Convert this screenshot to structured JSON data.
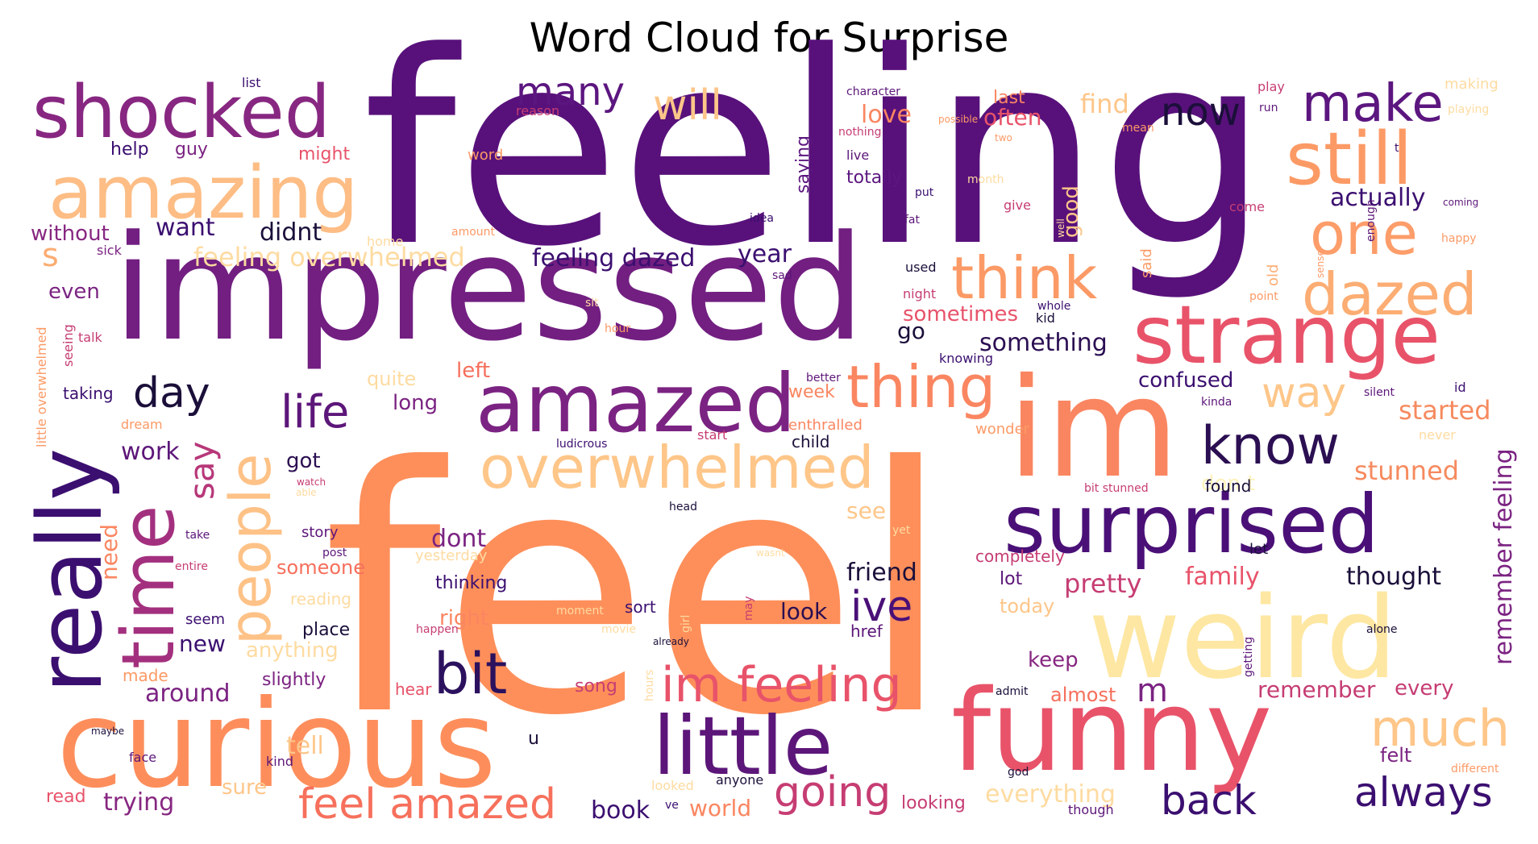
{
  "chart_data": {
    "type": "wordcloud",
    "title": "Word Cloud for Surprise",
    "colormap": "magma",
    "words": [
      {
        "text": "feeling",
        "weight": 1.0,
        "color": "#58117b"
      },
      {
        "text": "feel",
        "weight": 0.97,
        "color": "#fe8f5a"
      },
      {
        "text": "impressed",
        "weight": 0.78,
        "color": "#721f81"
      },
      {
        "text": "curious",
        "weight": 0.6,
        "color": "#fd8e5c"
      },
      {
        "text": "weird",
        "weight": 0.55,
        "color": "#fee7a2"
      },
      {
        "text": "funny",
        "weight": 0.56,
        "color": "#e8536a"
      },
      {
        "text": "im",
        "weight": 0.6,
        "color": "#fa8661"
      },
      {
        "text": "really",
        "weight": 0.42,
        "color": "#3b0f70"
      },
      {
        "text": "little",
        "weight": 0.36,
        "color": "#5c1679"
      },
      {
        "text": "surprised",
        "weight": 0.36,
        "color": "#4a1077"
      },
      {
        "text": "strange",
        "weight": 0.35,
        "color": "#e8536a"
      },
      {
        "text": "amazed",
        "weight": 0.35,
        "color": "#7b2382"
      },
      {
        "text": "shocked",
        "weight": 0.33,
        "color": "#872781"
      },
      {
        "text": "amazing",
        "weight": 0.33,
        "color": "#fdbd85"
      },
      {
        "text": "time",
        "weight": 0.32,
        "color": "#a3307e"
      },
      {
        "text": "people",
        "weight": 0.28,
        "color": "#fec287"
      },
      {
        "text": "overwhelmed",
        "weight": 0.27,
        "color": "#fec689"
      },
      {
        "text": "still",
        "weight": 0.26,
        "color": "#fc9a66"
      },
      {
        "text": "thing",
        "weight": 0.24,
        "color": "#fa8661"
      },
      {
        "text": "think",
        "weight": 0.24,
        "color": "#fb9a66"
      },
      {
        "text": "dazed",
        "weight": 0.23,
        "color": "#fcad73"
      },
      {
        "text": "one",
        "weight": 0.22,
        "color": "#fd9d6a"
      },
      {
        "text": "make",
        "weight": 0.21,
        "color": "#5c167f"
      },
      {
        "text": "bit",
        "weight": 0.21,
        "color": "#2b115e"
      },
      {
        "text": "know",
        "weight": 0.2,
        "color": "#2b0f52"
      },
      {
        "text": "much",
        "weight": 0.19,
        "color": "#fec689"
      },
      {
        "text": "im feeling",
        "weight": 0.19,
        "color": "#e8536a"
      },
      {
        "text": "feel amazed",
        "weight": 0.17,
        "color": "#f6705c"
      },
      {
        "text": "life",
        "weight": 0.16,
        "color": "#5c1679"
      },
      {
        "text": "always",
        "weight": 0.16,
        "color": "#3b0f70"
      },
      {
        "text": "back",
        "weight": 0.16,
        "color": "#3b0f70"
      },
      {
        "text": "way",
        "weight": 0.16,
        "color": "#fec689"
      },
      {
        "text": "going",
        "weight": 0.16,
        "color": "#c63d73"
      },
      {
        "text": "day",
        "weight": 0.16,
        "color": "#1b0f3a"
      },
      {
        "text": "ive",
        "weight": 0.15,
        "color": "#4a1077"
      },
      {
        "text": "will",
        "weight": 0.15,
        "color": "#fec689"
      },
      {
        "text": "now",
        "weight": 0.14,
        "color": "#1b0f3a"
      },
      {
        "text": "many",
        "weight": 0.14,
        "color": "#5c167f"
      },
      {
        "text": "say",
        "weight": 0.13,
        "color": "#b73779"
      },
      {
        "text": "m",
        "weight": 0.13,
        "color": "#7b2382"
      },
      {
        "text": "s",
        "weight": 0.12,
        "color": "#fcad73"
      },
      {
        "text": "stunned",
        "weight": 0.1,
        "color": "#f68a5e"
      },
      {
        "text": "started",
        "weight": 0.1,
        "color": "#f68a5e"
      },
      {
        "text": "pretty",
        "weight": 0.1,
        "color": "#c63d73"
      },
      {
        "text": "feeling overwhelmed",
        "weight": 0.1,
        "color": "#fedba1"
      },
      {
        "text": "feeling dazed",
        "weight": 0.09,
        "color": "#3b0f70"
      },
      {
        "text": "actually",
        "weight": 0.09,
        "color": "#3b0f70"
      },
      {
        "text": "something",
        "weight": 0.09,
        "color": "#2b0f52"
      },
      {
        "text": "thought",
        "weight": 0.09,
        "color": "#1b0f3a"
      },
      {
        "text": "didnt",
        "weight": 0.09,
        "color": "#1b0f3a"
      },
      {
        "text": "friend",
        "weight": 0.09,
        "color": "#1b0f3a"
      },
      {
        "text": "family",
        "weight": 0.09,
        "color": "#e8536a"
      },
      {
        "text": "dont",
        "weight": 0.09,
        "color": "#7b2382"
      },
      {
        "text": "year",
        "weight": 0.09,
        "color": "#3b0f70"
      },
      {
        "text": "want",
        "weight": 0.09,
        "color": "#3b0f70"
      },
      {
        "text": "remember feeling",
        "weight": 0.09,
        "color": "#7b2382"
      },
      {
        "text": "remember",
        "weight": 0.09,
        "color": "#c63d73"
      },
      {
        "text": "around",
        "weight": 0.09,
        "color": "#7b2382"
      },
      {
        "text": "trying",
        "weight": 0.08,
        "color": "#872781"
      },
      {
        "text": "find",
        "weight": 0.08,
        "color": "#fec689"
      },
      {
        "text": "love",
        "weight": 0.08,
        "color": "#fa8661"
      },
      {
        "text": "often",
        "weight": 0.08,
        "color": "#e8536a"
      },
      {
        "text": "look",
        "weight": 0.08,
        "color": "#2b0f52"
      },
      {
        "text": "book",
        "weight": 0.08,
        "color": "#3b0f70"
      },
      {
        "text": "world",
        "weight": 0.08,
        "color": "#fa8661"
      },
      {
        "text": "see",
        "weight": 0.08,
        "color": "#fec689"
      },
      {
        "text": "sure",
        "weight": 0.08,
        "color": "#fec689"
      },
      {
        "text": "confused",
        "weight": 0.08,
        "color": "#3b0f70"
      },
      {
        "text": "new",
        "weight": 0.08,
        "color": "#3b0f70"
      },
      {
        "text": "work",
        "weight": 0.08,
        "color": "#5c1679"
      },
      {
        "text": "tell",
        "weight": 0.08,
        "color": "#fec689"
      },
      {
        "text": "every",
        "weight": 0.08,
        "color": "#c63d73"
      },
      {
        "text": "everything",
        "weight": 0.08,
        "color": "#fedba1"
      },
      {
        "text": "need",
        "weight": 0.08,
        "color": "#fa8661"
      },
      {
        "text": "got",
        "weight": 0.07,
        "color": "#2b0f52"
      },
      {
        "text": "go",
        "weight": 0.07,
        "color": "#1b0f3a"
      },
      {
        "text": "even",
        "weight": 0.07,
        "color": "#7b2382"
      },
      {
        "text": "almost",
        "weight": 0.07,
        "color": "#f66f5c"
      },
      {
        "text": "felt",
        "weight": 0.07,
        "color": "#7b2382"
      },
      {
        "text": "keep",
        "weight": 0.07,
        "color": "#872781"
      },
      {
        "text": "left",
        "weight": 0.07,
        "color": "#f66f5c"
      },
      {
        "text": "right",
        "weight": 0.07,
        "color": "#fa8661"
      },
      {
        "text": "sometimes",
        "weight": 0.07,
        "color": "#e8536a"
      },
      {
        "text": "without",
        "weight": 0.07,
        "color": "#872781"
      },
      {
        "text": "today",
        "weight": 0.07,
        "color": "#fec689"
      },
      {
        "text": "good",
        "weight": 0.07,
        "color": "#fec689"
      },
      {
        "text": "saying",
        "weight": 0.07,
        "color": "#5c167f"
      },
      {
        "text": "don t",
        "weight": 0.07,
        "color": "#fef2bb"
      },
      {
        "text": "someone",
        "weight": 0.07,
        "color": "#f66f5c"
      },
      {
        "text": "anything",
        "weight": 0.07,
        "color": "#fedba1"
      },
      {
        "text": "quite",
        "weight": 0.07,
        "color": "#fedba1"
      },
      {
        "text": "week",
        "weight": 0.06,
        "color": "#fa8661"
      },
      {
        "text": "long",
        "weight": 0.06,
        "color": "#7b2382"
      },
      {
        "text": "totally",
        "weight": 0.06,
        "color": "#5c167f"
      },
      {
        "text": "last",
        "weight": 0.06,
        "color": "#fa8661"
      },
      {
        "text": "thinking",
        "weight": 0.06,
        "color": "#3b0f70"
      },
      {
        "text": "taking",
        "weight": 0.06,
        "color": "#3b0f70"
      },
      {
        "text": "place",
        "weight": 0.06,
        "color": "#1b0f3a"
      },
      {
        "text": "hear",
        "weight": 0.06,
        "color": "#e8536a"
      },
      {
        "text": "song",
        "weight": 0.06,
        "color": "#c63d73"
      },
      {
        "text": "slightly",
        "weight": 0.06,
        "color": "#7b2382"
      },
      {
        "text": "completely",
        "weight": 0.06,
        "color": "#c63d73"
      },
      {
        "text": "lot",
        "weight": 0.06,
        "color": "#5c1679"
      },
      {
        "text": "help",
        "weight": 0.06,
        "color": "#3b0f70"
      },
      {
        "text": "guy",
        "weight": 0.06,
        "color": "#7b2382"
      },
      {
        "text": "might",
        "weight": 0.06,
        "color": "#e8536a"
      },
      {
        "text": "read",
        "weight": 0.06,
        "color": "#e8536a"
      },
      {
        "text": "u",
        "weight": 0.06,
        "color": "#1b0f3a"
      },
      {
        "text": "made",
        "weight": 0.06,
        "color": "#fc9a66"
      },
      {
        "text": "looking",
        "weight": 0.06,
        "color": "#c63d73"
      },
      {
        "text": "story",
        "weight": 0.05,
        "color": "#5c1679"
      },
      {
        "text": "sort",
        "weight": 0.05,
        "color": "#3b0f70"
      },
      {
        "text": "reading",
        "weight": 0.05,
        "color": "#fedba1"
      },
      {
        "text": "seem",
        "weight": 0.05,
        "color": "#3b0f70"
      },
      {
        "text": "child",
        "weight": 0.05,
        "color": "#1b0f3a"
      },
      {
        "text": "enthralled",
        "weight": 0.05,
        "color": "#fa8661"
      },
      {
        "text": "wonder",
        "weight": 0.05,
        "color": "#fc9a66"
      },
      {
        "text": "found",
        "weight": 0.05,
        "color": "#1b0f3a"
      },
      {
        "text": "let",
        "weight": 0.05,
        "color": "#1b0f3a"
      },
      {
        "text": "yesterday",
        "weight": 0.05,
        "color": "#fedba1"
      },
      {
        "text": "old",
        "weight": 0.05,
        "color": "#fcad73"
      },
      {
        "text": "said",
        "weight": 0.05,
        "color": "#fc9a66"
      },
      {
        "text": "href",
        "weight": 0.05,
        "color": "#5c1679"
      },
      {
        "text": "home",
        "weight": 0.04,
        "color": "#fedba1"
      },
      {
        "text": "sick",
        "weight": 0.04,
        "color": "#7b2382"
      },
      {
        "text": "talk",
        "weight": 0.04,
        "color": "#c63d73"
      },
      {
        "text": "seeing",
        "weight": 0.04,
        "color": "#c63d73"
      },
      {
        "text": "dream",
        "weight": 0.04,
        "color": "#fc9a66"
      },
      {
        "text": "little overwhelmed",
        "weight": 0.04,
        "color": "#fc9a66"
      },
      {
        "text": "list",
        "weight": 0.04,
        "color": "#3b0f70"
      },
      {
        "text": "reason",
        "weight": 0.04,
        "color": "#c63d73"
      },
      {
        "text": "word",
        "weight": 0.04,
        "color": "#fc9a66"
      },
      {
        "text": "character",
        "weight": 0.04,
        "color": "#5c1679"
      },
      {
        "text": "nothing",
        "weight": 0.04,
        "color": "#c63d73"
      },
      {
        "text": "possible",
        "weight": 0.04,
        "color": "#fc9a66"
      },
      {
        "text": "two",
        "weight": 0.04,
        "color": "#fc9a66"
      },
      {
        "text": "live",
        "weight": 0.04,
        "color": "#5c1679"
      },
      {
        "text": "put",
        "weight": 0.04,
        "color": "#3b0f70"
      },
      {
        "text": "fat",
        "weight": 0.04,
        "color": "#5c1679"
      },
      {
        "text": "month",
        "weight": 0.04,
        "color": "#fedba1"
      },
      {
        "text": "give",
        "weight": 0.04,
        "color": "#c63d73"
      },
      {
        "text": "idea",
        "weight": 0.04,
        "color": "#3b0f70"
      },
      {
        "text": "amount",
        "weight": 0.04,
        "color": "#fc9a66"
      },
      {
        "text": "used",
        "weight": 0.04,
        "color": "#1b0f3a"
      },
      {
        "text": "night",
        "weight": 0.04,
        "color": "#c63d73"
      },
      {
        "text": "sad",
        "weight": 0.04,
        "color": "#5c1679"
      },
      {
        "text": "sit",
        "weight": 0.04,
        "color": "#fedba1"
      },
      {
        "text": "hour",
        "weight": 0.04,
        "color": "#fc9a66"
      },
      {
        "text": "kid",
        "weight": 0.04,
        "color": "#1b0f3a"
      },
      {
        "text": "whole",
        "weight": 0.04,
        "color": "#3b0f70"
      },
      {
        "text": "knowing",
        "weight": 0.04,
        "color": "#3b0f70"
      },
      {
        "text": "better",
        "weight": 0.04,
        "color": "#5c1679"
      },
      {
        "text": "kinda",
        "weight": 0.04,
        "color": "#5c1679"
      },
      {
        "text": "silent",
        "weight": 0.04,
        "color": "#5c1679"
      },
      {
        "text": "id",
        "weight": 0.04,
        "color": "#3b0f70"
      },
      {
        "text": "never",
        "weight": 0.04,
        "color": "#fedba1"
      },
      {
        "text": "point",
        "weight": 0.04,
        "color": "#fc9a66"
      },
      {
        "text": "sense",
        "weight": 0.04,
        "color": "#fc9a66"
      },
      {
        "text": "well",
        "weight": 0.04,
        "color": "#fedba1"
      },
      {
        "text": "come",
        "weight": 0.04,
        "color": "#c63d73"
      },
      {
        "text": "enough",
        "weight": 0.04,
        "color": "#5c1679"
      },
      {
        "text": "happy",
        "weight": 0.04,
        "color": "#fc9a66"
      },
      {
        "text": "coming",
        "weight": 0.04,
        "color": "#5c1679"
      },
      {
        "text": "making",
        "weight": 0.04,
        "color": "#fedba1"
      },
      {
        "text": "playing",
        "weight": 0.04,
        "color": "#fedba1"
      },
      {
        "text": "play",
        "weight": 0.04,
        "color": "#c63d73"
      },
      {
        "text": "run",
        "weight": 0.04,
        "color": "#5c1679"
      },
      {
        "text": "mean",
        "weight": 0.04,
        "color": "#fc9a66"
      },
      {
        "text": "t",
        "weight": 0.04,
        "color": "#3b0f70"
      },
      {
        "text": "ludicrous",
        "weight": 0.04,
        "color": "#3b0f70"
      },
      {
        "text": "start",
        "weight": 0.04,
        "color": "#c63d73"
      },
      {
        "text": "watch",
        "weight": 0.03,
        "color": "#c63d73"
      },
      {
        "text": "able",
        "weight": 0.03,
        "color": "#fedba1"
      },
      {
        "text": "head",
        "weight": 0.03,
        "color": "#1b0f3a"
      },
      {
        "text": "bit stunned",
        "weight": 0.03,
        "color": "#c63d73"
      },
      {
        "text": "yet",
        "weight": 0.03,
        "color": "#fedba1"
      },
      {
        "text": "take",
        "weight": 0.03,
        "color": "#5c1679"
      },
      {
        "text": "entire",
        "weight": 0.03,
        "color": "#c63d73"
      },
      {
        "text": "post",
        "weight": 0.03,
        "color": "#5c1679"
      },
      {
        "text": "wasnt",
        "weight": 0.03,
        "color": "#fedba1"
      },
      {
        "text": "girl",
        "weight": 0.03,
        "color": "#fedba1"
      },
      {
        "text": "moment",
        "weight": 0.03,
        "color": "#fedba1"
      },
      {
        "text": "movie",
        "weight": 0.03,
        "color": "#fedba1"
      },
      {
        "text": "happen",
        "weight": 0.03,
        "color": "#c63d73"
      },
      {
        "text": "may",
        "weight": 0.03,
        "color": "#c63d73"
      },
      {
        "text": "already",
        "weight": 0.03,
        "color": "#1b0f3a"
      },
      {
        "text": "getting",
        "weight": 0.03,
        "color": "#5c1679"
      },
      {
        "text": "alone",
        "weight": 0.03,
        "color": "#1b0f3a"
      },
      {
        "text": "admit",
        "weight": 0.03,
        "color": "#1b0f3a"
      },
      {
        "text": "hours",
        "weight": 0.03,
        "color": "#fedba1"
      },
      {
        "text": "maybe",
        "weight": 0.03,
        "color": "#1b0f3a"
      },
      {
        "text": "face",
        "weight": 0.03,
        "color": "#5c1679"
      },
      {
        "text": "kind",
        "weight": 0.03,
        "color": "#5c1679"
      },
      {
        "text": "looked",
        "weight": 0.03,
        "color": "#fedba1"
      },
      {
        "text": "anyone",
        "weight": 0.03,
        "color": "#1b0f3a"
      },
      {
        "text": "ve",
        "weight": 0.03,
        "color": "#3b0f70"
      },
      {
        "text": "god",
        "weight": 0.03,
        "color": "#1b0f3a"
      },
      {
        "text": "though",
        "weight": 0.03,
        "color": "#5c1679"
      },
      {
        "text": "different",
        "weight": 0.03,
        "color": "#fc9a66"
      }
    ]
  }
}
